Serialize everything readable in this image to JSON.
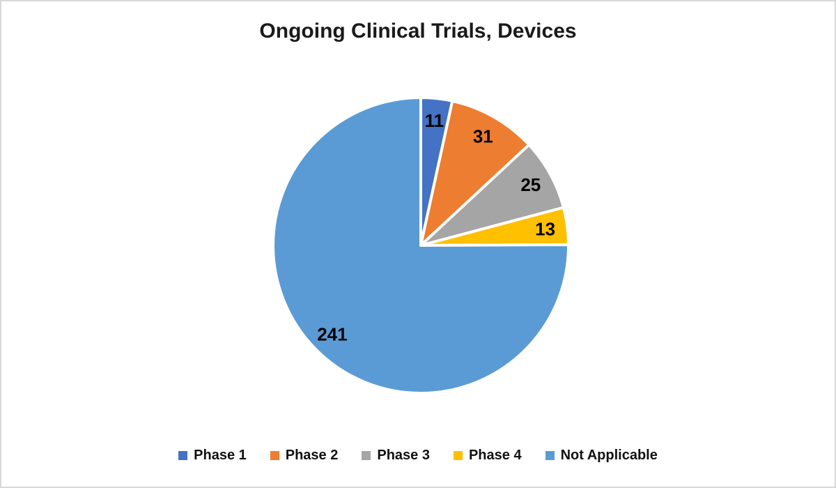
{
  "page": {
    "background": "#FFFFFF",
    "border_color": "#D8D8D8"
  },
  "chart_data": {
    "type": "pie",
    "title": "Ongoing Clinical Trials, Devices",
    "categories": [
      "Phase 1",
      "Phase 2",
      "Phase 3",
      "Phase 4",
      "Not Applicable"
    ],
    "values": [
      11,
      31,
      25,
      13,
      241
    ],
    "data_labels": [
      "11",
      "31",
      "25",
      "13",
      "241"
    ],
    "colors": [
      "#4472C4",
      "#ED7D31",
      "#A5A5A5",
      "#FFC000",
      "#5B9BD5"
    ],
    "slice_border_color": "#FFFFFF",
    "label_color": "#000000",
    "start_angle_deg": 0,
    "direction": "clockwise",
    "legend_position": "bottom"
  }
}
